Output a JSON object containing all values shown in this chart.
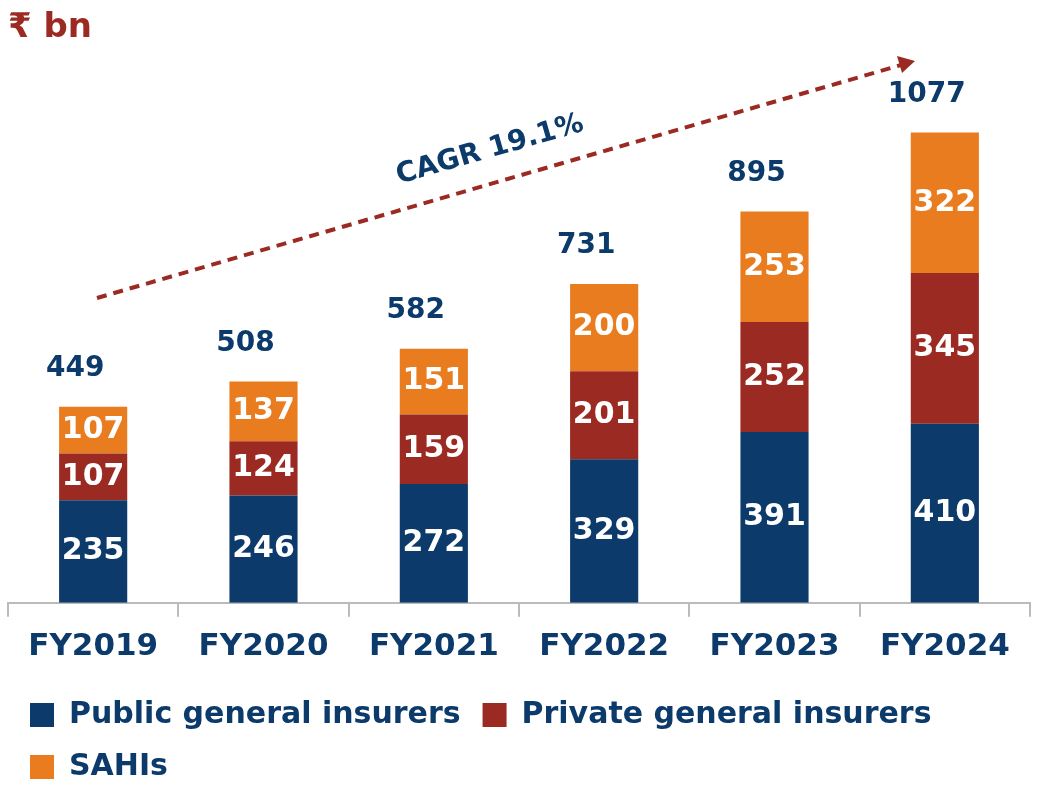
{
  "chart_data": {
    "type": "bar",
    "stacked": true,
    "title": "₹ bn",
    "categories": [
      "FY2019",
      "FY2020",
      "FY2021",
      "FY2022",
      "FY2023",
      "FY2024"
    ],
    "series": [
      {
        "name": "Public general insurers",
        "color": "#0b3a6b",
        "values": [
          235,
          246,
          272,
          329,
          391,
          410
        ]
      },
      {
        "name": "Private general insurers",
        "color": "#9b2a22",
        "values": [
          107,
          124,
          159,
          201,
          252,
          345
        ]
      },
      {
        "name": "SAHIs",
        "color": "#e87c1e",
        "values": [
          107,
          137,
          151,
          200,
          253,
          322
        ]
      }
    ],
    "totals": [
      "449",
      "508",
      "582",
      "731",
      "895",
      "1077"
    ],
    "data_labels": true,
    "grid": false,
    "legend": "bottom",
    "tick_labels": "x",
    "annotations": [
      "CAGR 19.1%"
    ]
  }
}
